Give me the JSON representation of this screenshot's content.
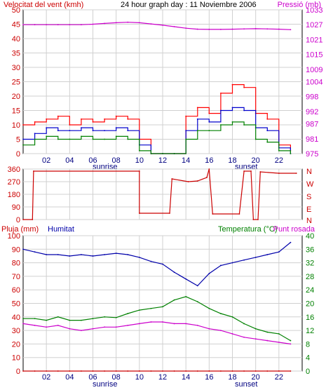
{
  "header": {
    "left_label": "Velocitat del vent (kmh)",
    "center_label": "24 hour graph day : 11 Noviembre 2006",
    "right_label": "Pressió (mb)"
  },
  "panel2_right_labels": [
    "N",
    "W",
    "S",
    "E",
    "N"
  ],
  "panel3_header": {
    "rain_label": "Pluja (mm)",
    "humidity_label": "Humitat",
    "temp_label": "Temperatura (°C)",
    "dew_label": "Punt rosada"
  },
  "x_axis": {
    "ticks": [
      "02",
      "04",
      "06",
      "08",
      "10",
      "12",
      "14",
      "16",
      "18",
      "20",
      "22"
    ],
    "sunrise_label": "sunrise",
    "sunset_label": "sunset"
  },
  "colors": {
    "wind_gust": "#ff0000",
    "wind_max": "#0000cc",
    "wind_avg": "#008000",
    "pressure": "#cc00cc",
    "direction": "#cc0000",
    "rain": "#cc0000",
    "humidity": "#0000aa",
    "temperature": "#008000",
    "dew_point": "#cc00cc"
  },
  "chart_data": [
    {
      "type": "line",
      "x_unit": "hour",
      "x": [
        0,
        1,
        2,
        3,
        4,
        5,
        6,
        7,
        8,
        9,
        10,
        11,
        12,
        13,
        14,
        15,
        16,
        17,
        18,
        19,
        20,
        21,
        22,
        23
      ],
      "ylim_left": [
        0,
        50
      ],
      "yticks_left": [
        0,
        5,
        10,
        15,
        20,
        25,
        30,
        35,
        40,
        45,
        50
      ],
      "ylim_right": [
        975,
        1033
      ],
      "yticks_right": [
        975,
        981,
        987,
        992,
        998,
        1004,
        1009,
        1015,
        1021,
        1027,
        1033
      ],
      "series": [
        {
          "name": "wind_gust",
          "axis": "left",
          "values": [
            10,
            11,
            12,
            13,
            10,
            12,
            11,
            12,
            13,
            12,
            5,
            0,
            0,
            0,
            13,
            16,
            14,
            21,
            24,
            23,
            14,
            12,
            3,
            1
          ]
        },
        {
          "name": "wind_max",
          "axis": "left",
          "values": [
            5,
            7,
            9,
            8,
            8,
            9,
            8,
            8,
            9,
            8,
            3,
            0,
            0,
            0,
            8,
            12,
            11,
            15,
            16,
            15,
            9,
            8,
            2,
            0
          ]
        },
        {
          "name": "wind_avg",
          "axis": "left",
          "values": [
            3,
            5,
            6,
            5,
            5,
            6,
            5,
            5,
            6,
            5,
            1,
            0,
            0,
            0,
            5,
            8,
            8,
            10,
            11,
            10,
            5,
            4,
            1,
            0
          ]
        },
        {
          "name": "pressure",
          "axis": "right",
          "values": [
            1027,
            1027,
            1027,
            1027,
            1027,
            1027,
            1027.2,
            1027.5,
            1027.8,
            1028,
            1027.8,
            1027.3,
            1026.8,
            1026.2,
            1025.6,
            1025.2,
            1025.1,
            1025.1,
            1025.2,
            1025.3,
            1025.4,
            1025.3,
            1025.2,
            1025
          ]
        }
      ]
    },
    {
      "type": "line",
      "x_unit": "hour",
      "ylim": [
        0,
        360
      ],
      "yticks": [
        0,
        90,
        180,
        270,
        360
      ],
      "series": [
        {
          "name": "wind_direction",
          "points": [
            [
              0,
              0
            ],
            [
              0.8,
              0
            ],
            [
              0.9,
              345
            ],
            [
              10,
              345
            ],
            [
              10,
              45
            ],
            [
              12.6,
              45
            ],
            [
              12.8,
              290
            ],
            [
              14.2,
              270
            ],
            [
              15,
              275
            ],
            [
              15.8,
              300
            ],
            [
              16,
              360
            ],
            [
              16.3,
              40
            ],
            [
              18.6,
              40
            ],
            [
              19,
              345
            ],
            [
              19.6,
              345
            ],
            [
              19.8,
              0
            ],
            [
              20.2,
              0
            ],
            [
              20.4,
              340
            ],
            [
              22,
              330
            ],
            [
              23.5,
              330
            ]
          ]
        }
      ]
    },
    {
      "type": "line",
      "x_unit": "hour",
      "ylim_left": [
        0,
        100
      ],
      "yticks_left": [
        0,
        10,
        20,
        30,
        40,
        50,
        60,
        70,
        80,
        90,
        100
      ],
      "ylim_right": [
        0,
        40
      ],
      "yticks_right": [
        0,
        4,
        8,
        12,
        16,
        20,
        24,
        28,
        32,
        36,
        40
      ],
      "series": [
        {
          "name": "rain",
          "axis": "left",
          "values": [
            0,
            0,
            0,
            0,
            0,
            0,
            0,
            0,
            0,
            0,
            0,
            0,
            0,
            0,
            0,
            0,
            0,
            0,
            0,
            0,
            0,
            0,
            0,
            0
          ]
        },
        {
          "name": "humidity",
          "axis": "left",
          "values": [
            90,
            88,
            86,
            86,
            85,
            86,
            85,
            86,
            87,
            86,
            84,
            81,
            79,
            73,
            68,
            63,
            72,
            78,
            80,
            82,
            84,
            86,
            88,
            95
          ]
        },
        {
          "name": "temperature",
          "axis": "right",
          "values": [
            15.5,
            15.5,
            15,
            16,
            15,
            15,
            15.5,
            16,
            15.8,
            17,
            18,
            18.5,
            19,
            21,
            22,
            20.5,
            18.5,
            17,
            16,
            14,
            12.5,
            11.5,
            11,
            9
          ]
        },
        {
          "name": "dew_point",
          "axis": "right",
          "values": [
            14,
            13.5,
            13,
            13.5,
            12.5,
            12,
            12.5,
            13,
            13,
            13.5,
            14,
            14.5,
            14.5,
            14,
            14,
            13.5,
            12.5,
            12,
            11,
            10,
            9.5,
            9,
            8.5,
            8
          ]
        }
      ]
    }
  ]
}
